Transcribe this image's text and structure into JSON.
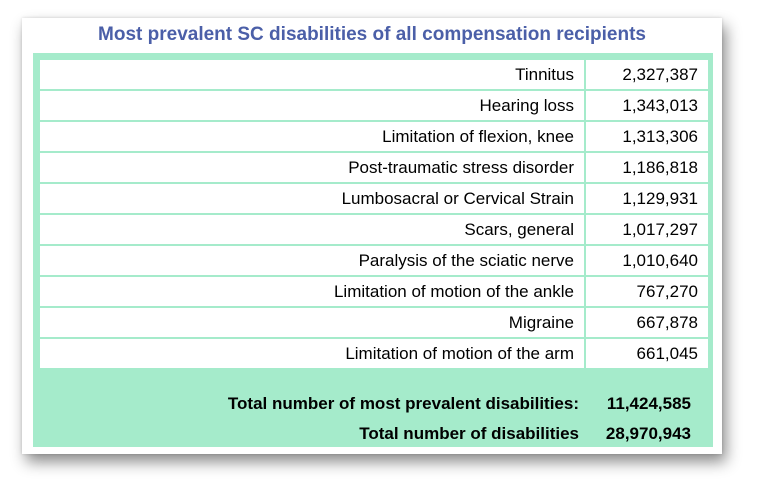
{
  "title": "Most prevalent SC disabilities of all compensation recipients",
  "chart_data": {
    "type": "table",
    "title": "Most prevalent SC disabilities of all compensation recipients",
    "rows": [
      {
        "label": "Tinnitus",
        "value": "2,327,387"
      },
      {
        "label": "Hearing loss",
        "value": "1,343,013"
      },
      {
        "label": "Limitation of flexion, knee",
        "value": "1,313,306"
      },
      {
        "label": "Post-traumatic stress disorder",
        "value": "1,186,818"
      },
      {
        "label": "Lumbosacral or Cervical Strain",
        "value": "1,129,931"
      },
      {
        "label": "Scars, general",
        "value": "1,017,297"
      },
      {
        "label": "Paralysis of the sciatic nerve",
        "value": "1,010,640"
      },
      {
        "label": "Limitation of motion of the ankle",
        "value": "767,270"
      },
      {
        "label": "Migraine",
        "value": "667,878"
      },
      {
        "label": "Limitation of motion of the arm",
        "value": "661,045"
      }
    ],
    "totals": [
      {
        "label": "Total number of most prevalent disabilities:",
        "value": "11,424,585"
      },
      {
        "label": "Total number of disabilities",
        "value": "28,970,943"
      }
    ]
  },
  "colors": {
    "title": "#4b5fa8",
    "table_accent": "#a5ebcb"
  }
}
